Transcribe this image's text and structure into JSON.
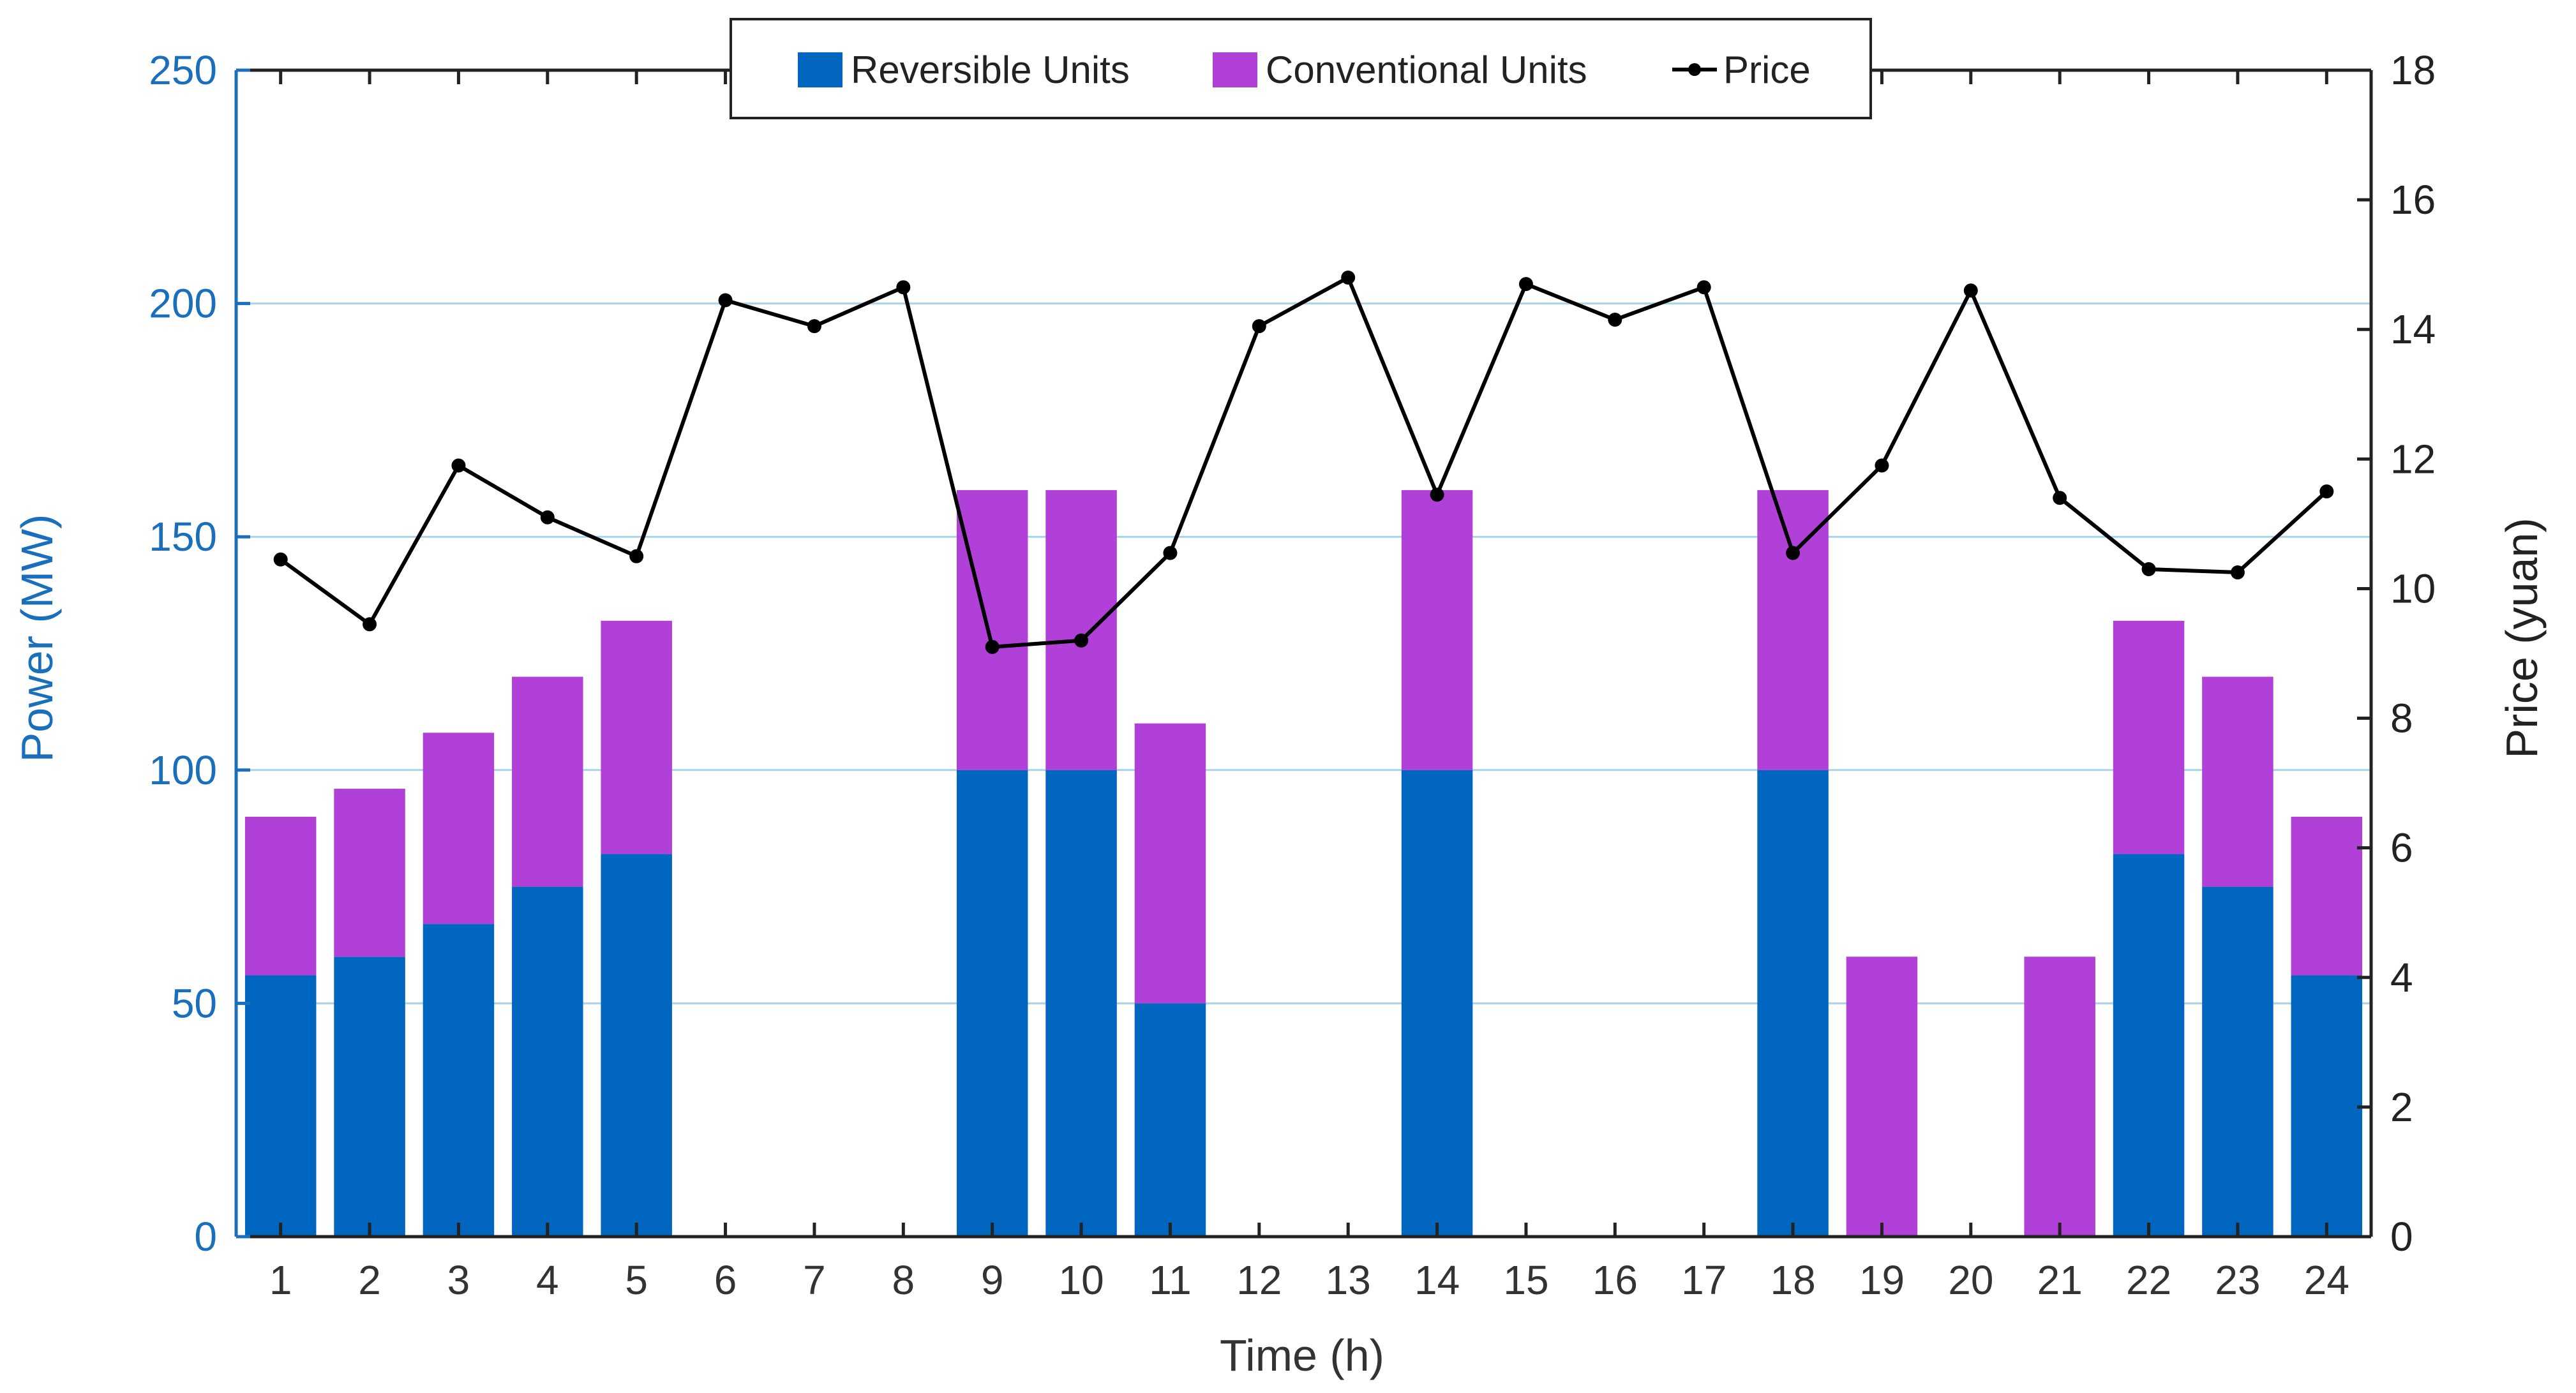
{
  "chart_data": {
    "type": "bar",
    "stacked": true,
    "title": "",
    "xlabel": "Time (h)",
    "ylabel": "Power (MW)",
    "y2label": "Price (yuan)",
    "categories": [
      "1",
      "2",
      "3",
      "4",
      "5",
      "6",
      "7",
      "8",
      "9",
      "10",
      "11",
      "12",
      "13",
      "14",
      "15",
      "16",
      "17",
      "18",
      "19",
      "20",
      "21",
      "22",
      "23",
      "24"
    ],
    "ylim": [
      0,
      250
    ],
    "y2lim": [
      0,
      18
    ],
    "yticks": [
      "0",
      "50",
      "100",
      "150",
      "200",
      "250"
    ],
    "y2ticks": [
      "0",
      "2",
      "4",
      "6",
      "8",
      "10",
      "12",
      "14",
      "16",
      "18"
    ],
    "grid": true,
    "legend_position": "top-center",
    "series": [
      {
        "name": "Reversible Units",
        "kind": "bar",
        "axis": "left",
        "color": "#0066c0",
        "values": [
          56,
          60,
          67,
          75,
          82,
          0,
          0,
          0,
          100,
          100,
          50,
          0,
          0,
          100,
          0,
          0,
          0,
          100,
          0,
          0,
          0,
          82,
          75,
          56
        ]
      },
      {
        "name": "Conventional Units",
        "kind": "bar",
        "axis": "left",
        "color": "#b040d8",
        "values": [
          34,
          36,
          41,
          45,
          50,
          0,
          0,
          0,
          60,
          60,
          60,
          0,
          0,
          60,
          0,
          0,
          0,
          60,
          60,
          0,
          60,
          50,
          45,
          34
        ]
      },
      {
        "name": "Price",
        "kind": "line",
        "axis": "right",
        "color": "#000000",
        "values": [
          10.45,
          9.45,
          11.9,
          11.1,
          10.5,
          14.45,
          14.05,
          14.65,
          9.1,
          9.2,
          10.55,
          14.05,
          14.8,
          11.45,
          14.7,
          14.15,
          14.65,
          10.55,
          11.9,
          14.6,
          11.4,
          10.3,
          10.25,
          11.5
        ]
      }
    ]
  },
  "colors": {
    "left_axis": "#1a6fbd",
    "grid": "#a9d3ec"
  }
}
